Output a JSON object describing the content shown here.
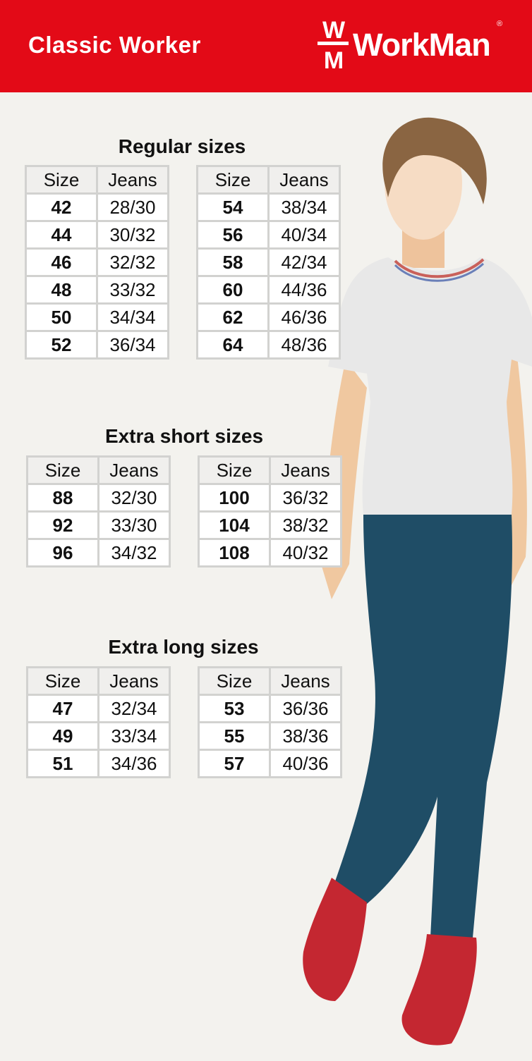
{
  "header": {
    "brand": "Classic Worker",
    "logo": "WorkMan",
    "registered": "®",
    "color": "#e30a17"
  },
  "columns": [
    "Size",
    "Jeans"
  ],
  "sections": [
    {
      "title": "Regular sizes",
      "tables": [
        [
          [
            "42",
            "28/30"
          ],
          [
            "44",
            "30/32"
          ],
          [
            "46",
            "32/32"
          ],
          [
            "48",
            "33/32"
          ],
          [
            "50",
            "34/34"
          ],
          [
            "52",
            "36/34"
          ]
        ],
        [
          [
            "54",
            "38/34"
          ],
          [
            "56",
            "40/34"
          ],
          [
            "58",
            "42/34"
          ],
          [
            "60",
            "44/36"
          ],
          [
            "62",
            "46/36"
          ],
          [
            "64",
            "48/36"
          ]
        ]
      ]
    },
    {
      "title": "Extra short sizes",
      "tables": [
        [
          [
            "88",
            "32/30"
          ],
          [
            "92",
            "33/30"
          ],
          [
            "96",
            "34/32"
          ]
        ],
        [
          [
            "100",
            "36/32"
          ],
          [
            "104",
            "38/32"
          ],
          [
            "108",
            "40/32"
          ]
        ]
      ]
    },
    {
      "title": "Extra long sizes",
      "tables": [
        [
          [
            "47",
            "32/34"
          ],
          [
            "49",
            "33/34"
          ],
          [
            "51",
            "34/36"
          ]
        ],
        [
          [
            "53",
            "36/36"
          ],
          [
            "55",
            "38/36"
          ],
          [
            "57",
            "40/36"
          ]
        ]
      ]
    }
  ]
}
